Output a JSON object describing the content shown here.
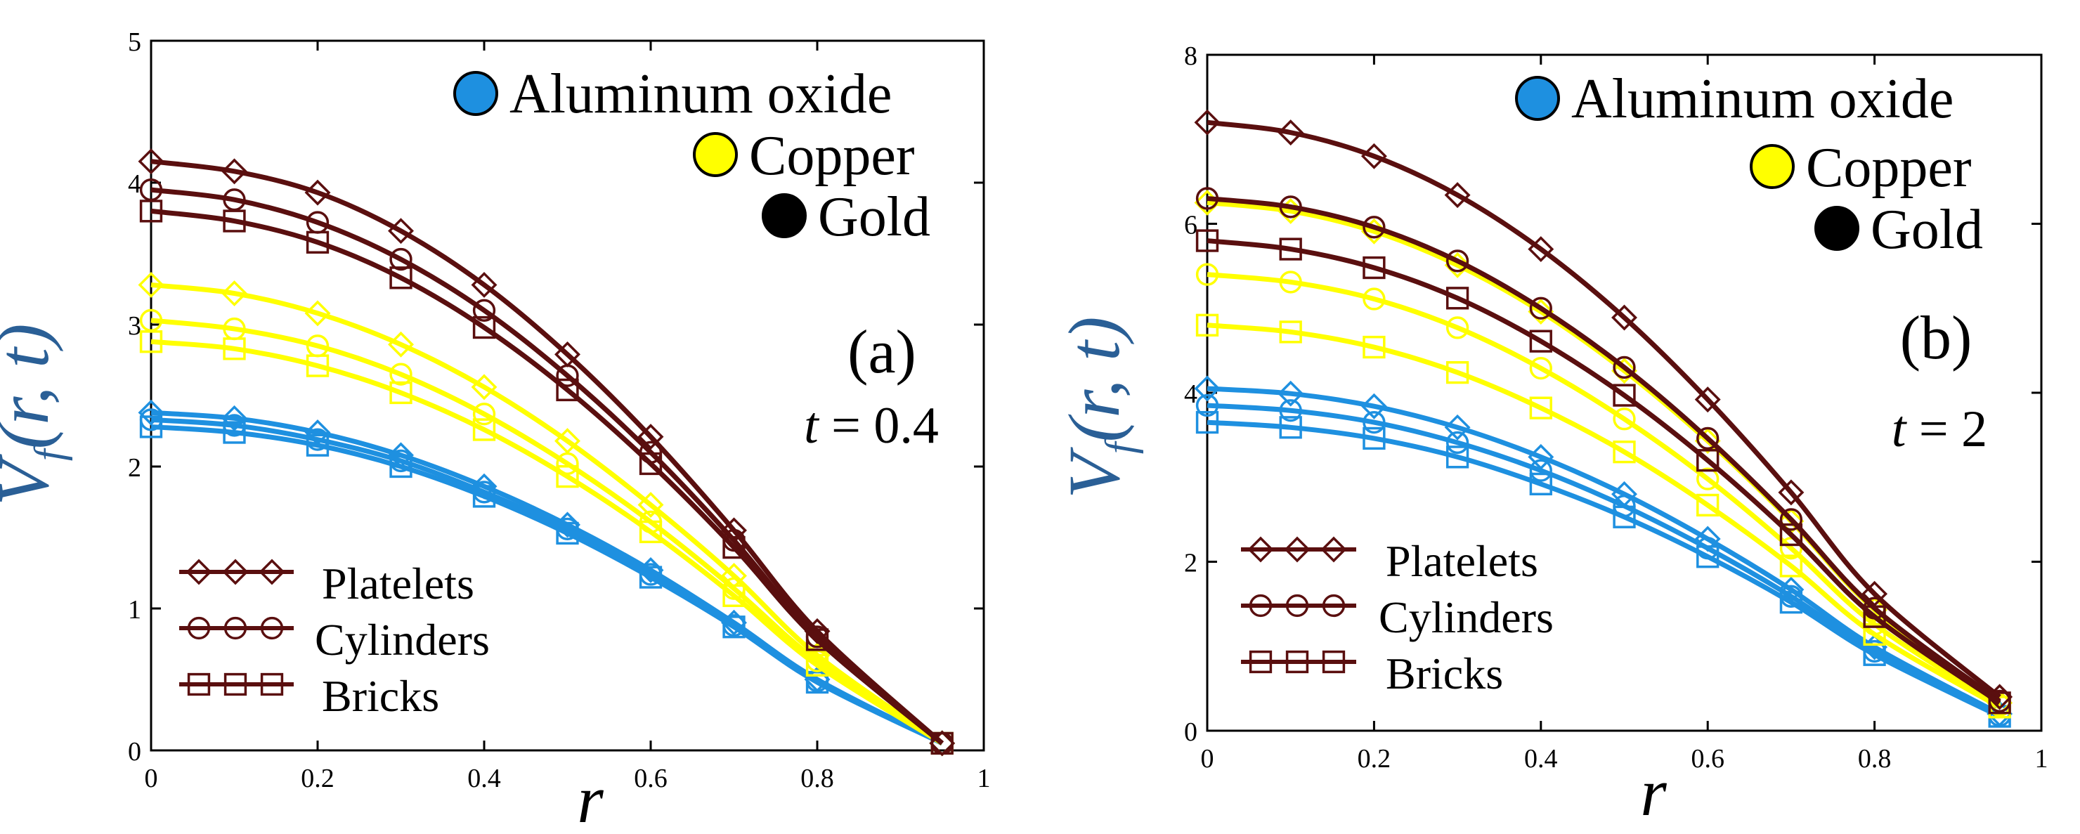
{
  "colors": {
    "aluminum": "#1e90e0",
    "copper": "#ffff00",
    "gold": "#5a0f0f",
    "legend_gold_dot": "#000000",
    "axis": "#000000",
    "label": "#2a5f96"
  },
  "panels": [
    {
      "letter": "(a)",
      "t_sym": "t",
      "t_eq": "= 0.4",
      "ylabel_main": "V",
      "ylabel_sub": "f",
      "ylabel_args": "(r, t)",
      "xlabel": "r",
      "color_legend": [
        "Aluminum oxide",
        "Copper",
        "Gold"
      ],
      "shape_legend": [
        "Platelets",
        "Cylinders",
        "Bricks"
      ]
    },
    {
      "letter": "(b)",
      "t_sym": "t",
      "t_eq": "= 2",
      "ylabel_main": "V",
      "ylabel_sub": "f",
      "ylabel_args": "(r, t)",
      "xlabel": "r",
      "color_legend": [
        "Aluminum oxide",
        "Copper",
        "Gold"
      ],
      "shape_legend": [
        "Platelets",
        "Cylinders",
        "Bricks"
      ]
    }
  ],
  "chart_data": [
    {
      "type": "line",
      "panel": "(a)",
      "xlabel": "r",
      "ylabel": "V_f(r, t)",
      "xlim": [
        0,
        1
      ],
      "ylim": [
        0,
        5
      ],
      "x_ticks": [
        0,
        0.2,
        0.4,
        0.6,
        0.8,
        1
      ],
      "y_ticks": [
        0,
        1,
        2,
        3,
        4,
        5
      ],
      "x": [
        0,
        0.1,
        0.2,
        0.3,
        0.4,
        0.5,
        0.6,
        0.7,
        0.8,
        0.95
      ],
      "annotation": "t = 0.4",
      "series": [
        {
          "material": "Gold",
          "shape": "Platelets",
          "marker": "diamond",
          "values": [
            4.15,
            4.08,
            3.93,
            3.66,
            3.28,
            2.79,
            2.21,
            1.55,
            0.84,
            0.05
          ]
        },
        {
          "material": "Gold",
          "shape": "Cylinders",
          "marker": "circle",
          "values": [
            3.95,
            3.88,
            3.72,
            3.46,
            3.1,
            2.64,
            2.1,
            1.48,
            0.8,
            0.05
          ]
        },
        {
          "material": "Gold",
          "shape": "Bricks",
          "marker": "square",
          "values": [
            3.8,
            3.73,
            3.58,
            3.33,
            2.98,
            2.54,
            2.02,
            1.43,
            0.78,
            0.05
          ]
        },
        {
          "material": "Copper",
          "shape": "Platelets",
          "marker": "diamond",
          "values": [
            3.28,
            3.22,
            3.08,
            2.86,
            2.56,
            2.18,
            1.73,
            1.23,
            0.67,
            0.05
          ]
        },
        {
          "material": "Copper",
          "shape": "Cylinders",
          "marker": "circle",
          "values": [
            3.03,
            2.97,
            2.85,
            2.65,
            2.37,
            2.02,
            1.61,
            1.14,
            0.63,
            0.05
          ]
        },
        {
          "material": "Copper",
          "shape": "Bricks",
          "marker": "square",
          "values": [
            2.88,
            2.83,
            2.71,
            2.52,
            2.26,
            1.93,
            1.54,
            1.09,
            0.6,
            0.05
          ]
        },
        {
          "material": "Aluminum oxide",
          "shape": "Platelets",
          "marker": "diamond",
          "values": [
            2.38,
            2.34,
            2.24,
            2.08,
            1.86,
            1.59,
            1.27,
            0.9,
            0.5,
            0.05
          ]
        },
        {
          "material": "Aluminum oxide",
          "shape": "Cylinders",
          "marker": "circle",
          "values": [
            2.33,
            2.29,
            2.19,
            2.04,
            1.82,
            1.56,
            1.24,
            0.88,
            0.49,
            0.05
          ]
        },
        {
          "material": "Aluminum oxide",
          "shape": "Bricks",
          "marker": "square",
          "values": [
            2.28,
            2.24,
            2.15,
            2.0,
            1.79,
            1.53,
            1.22,
            0.87,
            0.48,
            0.05
          ]
        }
      ]
    },
    {
      "type": "line",
      "panel": "(b)",
      "xlabel": "r",
      "ylabel": "V_f(r, t)",
      "xlim": [
        0,
        1
      ],
      "ylim": [
        0,
        8
      ],
      "x_ticks": [
        0,
        0.2,
        0.4,
        0.6,
        0.8,
        1
      ],
      "y_ticks": [
        0,
        2,
        4,
        6,
        8
      ],
      "x": [
        0,
        0.1,
        0.2,
        0.3,
        0.4,
        0.5,
        0.6,
        0.7,
        0.8,
        0.95
      ],
      "annotation": "t = 2",
      "series": [
        {
          "material": "Gold",
          "shape": "Platelets",
          "marker": "diamond",
          "values": [
            7.2,
            7.08,
            6.8,
            6.34,
            5.7,
            4.89,
            3.92,
            2.82,
            1.62,
            0.4
          ]
        },
        {
          "material": "Gold",
          "shape": "Cylinders",
          "marker": "circle",
          "values": [
            6.3,
            6.2,
            5.96,
            5.56,
            5.0,
            4.3,
            3.46,
            2.5,
            1.45,
            0.35
          ]
        },
        {
          "material": "Gold",
          "shape": "Bricks",
          "marker": "square",
          "values": [
            5.8,
            5.7,
            5.48,
            5.12,
            4.61,
            3.97,
            3.2,
            2.32,
            1.35,
            0.33
          ]
        },
        {
          "material": "Copper",
          "shape": "Platelets",
          "marker": "diamond",
          "values": [
            6.25,
            6.15,
            5.91,
            5.51,
            4.96,
            4.26,
            3.43,
            2.48,
            1.43,
            0.33
          ]
        },
        {
          "material": "Copper",
          "shape": "Cylinders",
          "marker": "circle",
          "values": [
            5.4,
            5.31,
            5.11,
            4.77,
            4.29,
            3.69,
            2.98,
            2.16,
            1.26,
            0.3
          ]
        },
        {
          "material": "Copper",
          "shape": "Bricks",
          "marker": "square",
          "values": [
            4.8,
            4.72,
            4.54,
            4.24,
            3.82,
            3.3,
            2.67,
            1.95,
            1.14,
            0.28
          ]
        },
        {
          "material": "Aluminum oxide",
          "shape": "Platelets",
          "marker": "diamond",
          "values": [
            4.05,
            3.99,
            3.84,
            3.59,
            3.24,
            2.8,
            2.27,
            1.67,
            0.99,
            0.2
          ]
        },
        {
          "material": "Aluminum oxide",
          "shape": "Cylinders",
          "marker": "circle",
          "values": [
            3.85,
            3.79,
            3.65,
            3.41,
            3.08,
            2.66,
            2.16,
            1.59,
            0.94,
            0.18
          ]
        },
        {
          "material": "Aluminum oxide",
          "shape": "Bricks",
          "marker": "square",
          "values": [
            3.65,
            3.59,
            3.46,
            3.24,
            2.92,
            2.53,
            2.06,
            1.52,
            0.9,
            0.17
          ]
        }
      ]
    }
  ]
}
